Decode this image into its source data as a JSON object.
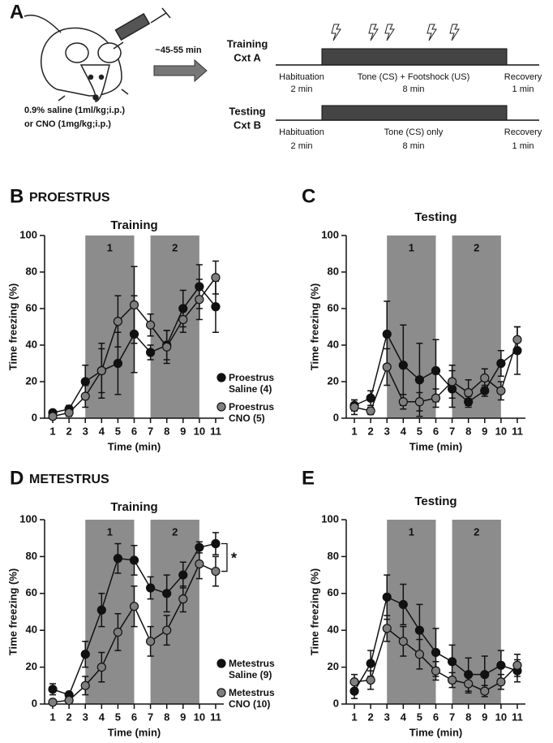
{
  "schematic": {
    "panel": "A",
    "injection": [
      "0.9% saline (1ml/kg;i.p.)",
      "or CNO (1mg/kg;i.p.)"
    ],
    "delay": "~45-55 min",
    "sessions": [
      {
        "name": [
          "Training",
          "Cxt A"
        ],
        "phases": [
          {
            "label": "Habituation",
            "duration": "2 min"
          },
          {
            "label": "Tone (CS) + Footshock (US)",
            "duration": "8 min"
          },
          {
            "label": "Recovery",
            "duration": "1 min"
          }
        ]
      },
      {
        "name": [
          "Testing",
          "Cxt B"
        ],
        "phases": [
          {
            "label": "Habituation",
            "duration": "2 min"
          },
          {
            "label": "Tone (CS) only",
            "duration": "8 min"
          },
          {
            "label": "Recovery",
            "duration": "1 min"
          }
        ]
      }
    ]
  },
  "chart_data": [
    {
      "type": "line",
      "panel": "B",
      "heading": "PROESTRUS",
      "title": "Training",
      "xlabel": "Time (min)",
      "ylabel": "Time freezing (%)",
      "x": [
        1,
        2,
        3,
        4,
        5,
        6,
        7,
        8,
        9,
        10,
        11
      ],
      "xlim": [
        0.5,
        11.5
      ],
      "ylim": [
        0,
        100
      ],
      "yticks": [
        0,
        20,
        40,
        60,
        80,
        100
      ],
      "shaded": [
        {
          "label": "1",
          "x": [
            3,
            6
          ]
        },
        {
          "label": "2",
          "x": [
            7,
            10
          ]
        }
      ],
      "legend": "right",
      "series": [
        {
          "name": "Proestrus Saline (4)",
          "color": "#111111",
          "values": [
            3,
            5,
            20,
            26,
            30,
            46,
            36,
            40,
            60,
            72,
            61
          ],
          "errors": [
            1,
            2,
            9,
            15,
            17,
            21,
            4,
            8,
            10,
            12,
            14
          ]
        },
        {
          "name": "Proestrus CNO (5)",
          "color": "#7f7f7f",
          "values": [
            1,
            3,
            12,
            26,
            53,
            62,
            51,
            39,
            54,
            65,
            77
          ],
          "errors": [
            1,
            2,
            6,
            12,
            14,
            21,
            6,
            9,
            7,
            11,
            9
          ]
        }
      ]
    },
    {
      "type": "line",
      "panel": "C",
      "title": "Testing",
      "xlabel": "Time (min)",
      "ylabel": "Time freezing (%)",
      "x": [
        1,
        2,
        3,
        4,
        5,
        6,
        7,
        8,
        9,
        10,
        11
      ],
      "xlim": [
        0.5,
        11.5
      ],
      "ylim": [
        0,
        100
      ],
      "yticks": [
        0,
        20,
        40,
        60,
        80,
        100
      ],
      "shaded": [
        {
          "label": "1",
          "x": [
            3,
            6
          ]
        },
        {
          "label": "2",
          "x": [
            7,
            10
          ]
        }
      ],
      "series": [
        {
          "color": "#111111",
          "values": [
            7,
            11,
            46,
            29,
            21,
            26,
            16,
            9,
            15,
            30,
            37
          ],
          "errors": [
            3,
            4,
            18,
            22,
            20,
            17,
            10,
            3,
            3,
            7,
            13
          ]
        },
        {
          "color": "#7f7f7f",
          "values": [
            6,
            4,
            28,
            9,
            9,
            11,
            20,
            14,
            22,
            15,
            43
          ],
          "errors": [
            4,
            2,
            10,
            4,
            5,
            5,
            9,
            7,
            5,
            5,
            7
          ]
        }
      ]
    },
    {
      "type": "line",
      "panel": "D",
      "heading": "METESTRUS",
      "title": "Training",
      "xlabel": "Time (min)",
      "ylabel": "Time freezing (%)",
      "x": [
        1,
        2,
        3,
        4,
        5,
        6,
        7,
        8,
        9,
        10,
        11
      ],
      "xlim": [
        0.5,
        11.5
      ],
      "ylim": [
        0,
        100
      ],
      "yticks": [
        0,
        20,
        40,
        60,
        80,
        100
      ],
      "shaded": [
        {
          "label": "1",
          "x": [
            3,
            6
          ]
        },
        {
          "label": "2",
          "x": [
            7,
            10
          ]
        }
      ],
      "legend": "right",
      "annotation": "*",
      "series": [
        {
          "name": "Metestrus Saline (9)",
          "color": "#111111",
          "values": [
            8,
            5,
            27,
            51,
            79,
            78,
            63,
            60,
            70,
            85,
            87
          ],
          "errors": [
            3,
            1,
            7,
            9,
            8,
            8,
            6,
            10,
            7,
            3,
            6
          ]
        },
        {
          "name": "Metestrus CNO (10)",
          "color": "#7f7f7f",
          "values": [
            1,
            2,
            10,
            20,
            39,
            53,
            34,
            40,
            57,
            76,
            72
          ],
          "errors": [
            1,
            1,
            5,
            8,
            10,
            11,
            8,
            8,
            7,
            8,
            8
          ]
        }
      ]
    },
    {
      "type": "line",
      "panel": "E",
      "title": "Testing",
      "xlabel": "Time (min)",
      "ylabel": "Time freezing (%)",
      "x": [
        1,
        2,
        3,
        4,
        5,
        6,
        7,
        8,
        9,
        10,
        11
      ],
      "xlim": [
        0.5,
        11.5
      ],
      "ylim": [
        0,
        100
      ],
      "yticks": [
        0,
        20,
        40,
        60,
        80,
        100
      ],
      "shaded": [
        {
          "label": "1",
          "x": [
            3,
            6
          ]
        },
        {
          "label": "2",
          "x": [
            7,
            10
          ]
        }
      ],
      "series": [
        {
          "color": "#111111",
          "values": [
            7,
            22,
            58,
            54,
            40,
            28,
            23,
            16,
            16,
            21,
            18
          ],
          "errors": [
            4,
            7,
            12,
            11,
            14,
            13,
            9,
            9,
            10,
            8,
            6
          ]
        },
        {
          "color": "#7f7f7f",
          "values": [
            12,
            13,
            41,
            34,
            27,
            18,
            13,
            11,
            7,
            12,
            21
          ],
          "errors": [
            4,
            5,
            7,
            8,
            8,
            5,
            4,
            5,
            3,
            4,
            6
          ]
        }
      ]
    }
  ]
}
